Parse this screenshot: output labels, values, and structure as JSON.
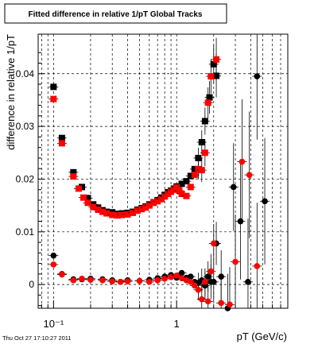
{
  "chart_data": {
    "type": "scatter",
    "title": "Fitted difference in relative 1/pT  Global Tracks",
    "xlabel": "pT (GeV/c)",
    "ylabel": "difference in relative 1/pT",
    "x_scale": "log",
    "xlim": [
      0.075,
      8.0
    ],
    "ylim": [
      -0.0045,
      0.0475
    ],
    "grid": true,
    "footer": "Thu Oct 27 17:10:27 2011",
    "x_ticks": [
      {
        "value": 0.1,
        "label": "10⁻¹"
      },
      {
        "value": 1,
        "label": "1"
      }
    ],
    "y_ticks": [
      {
        "value": 0,
        "label": "0"
      },
      {
        "value": 0.01,
        "label": "0.01"
      },
      {
        "value": 0.02,
        "label": "0.02"
      },
      {
        "value": 0.03,
        "label": "0.03"
      },
      {
        "value": 0.04,
        "label": "0.04"
      }
    ],
    "series": [
      {
        "marker": "square",
        "color": "#000000",
        "x": [
          0.1,
          0.117,
          0.145,
          0.17,
          0.19,
          0.21,
          0.23,
          0.25,
          0.27,
          0.3,
          0.33,
          0.36,
          0.4,
          0.44,
          0.48,
          0.52,
          0.56,
          0.6,
          0.65,
          0.7,
          0.75,
          0.8,
          0.85,
          0.9,
          0.95,
          1.0,
          1.1,
          1.2,
          1.3,
          1.4,
          1.5,
          1.6,
          1.7,
          1.85,
          2.0,
          2.1
        ],
        "y": [
          0.0375,
          0.0278,
          0.0213,
          0.0185,
          0.0164,
          0.0152,
          0.0146,
          0.0141,
          0.0138,
          0.0137,
          0.0134,
          0.0135,
          0.0136,
          0.0138,
          0.0142,
          0.0145,
          0.0148,
          0.0152,
          0.0156,
          0.016,
          0.0165,
          0.017,
          0.0175,
          0.0178,
          0.0182,
          0.0186,
          0.0191,
          0.0196,
          0.0206,
          0.0219,
          0.024,
          0.027,
          0.031,
          0.0355,
          0.0418,
          0.0396
        ]
      },
      {
        "marker": "square",
        "color": "#ff0000",
        "x": [
          0.1,
          0.117,
          0.145,
          0.16,
          0.175,
          0.19,
          0.21,
          0.23,
          0.25,
          0.27,
          0.3,
          0.33,
          0.36,
          0.4,
          0.44,
          0.48,
          0.52,
          0.56,
          0.6,
          0.65,
          0.7,
          0.75,
          0.8,
          0.85,
          0.9,
          0.95,
          1.0,
          1.05,
          1.1,
          1.2,
          1.3,
          1.4,
          1.5,
          1.6,
          1.7,
          1.8,
          1.9,
          2.1
        ],
        "y": [
          0.0352,
          0.0268,
          0.0205,
          0.0182,
          0.0165,
          0.0155,
          0.0147,
          0.0142,
          0.0138,
          0.0135,
          0.0132,
          0.0131,
          0.0132,
          0.0133,
          0.0136,
          0.014,
          0.0143,
          0.0146,
          0.015,
          0.0155,
          0.0158,
          0.0162,
          0.0167,
          0.0172,
          0.0176,
          0.018,
          0.0184,
          0.0178,
          0.0172,
          0.0168,
          0.0185,
          0.0208,
          0.0219,
          0.0217,
          0.025,
          0.0345,
          0.0395,
          0.0427
        ]
      },
      {
        "marker": "circle",
        "color": "#000000",
        "x": [
          0.1,
          0.117,
          0.145,
          0.17,
          0.2,
          0.25,
          0.3,
          0.35,
          0.4,
          0.5,
          0.6,
          0.7,
          0.8,
          0.9,
          1.0,
          1.1,
          1.2,
          1.3,
          1.4,
          1.5,
          1.6,
          1.7,
          1.8,
          1.9,
          2.0,
          2.1,
          2.3,
          2.6,
          2.9,
          3.3,
          3.8,
          4.5,
          5.2
        ],
        "y": [
          0.0055,
          0.002,
          0.001,
          0.001,
          0.0011,
          0.001,
          0.0008,
          0.0005,
          0.0008,
          0.0007,
          0.0009,
          0.0012,
          0.0015,
          0.0018,
          0.0013,
          0.0022,
          0.0013,
          0.0015,
          0.0005,
          0.0003,
          0.0008,
          -0.0002,
          0.0015,
          0.0005,
          0.0005,
          0.0078,
          0.0015,
          -0.0045,
          0.0185,
          0.012,
          0.0005,
          0.0395,
          0.0158
        ]
      },
      {
        "marker": "circle",
        "color": "#ff0000",
        "x": [
          0.1,
          0.117,
          0.145,
          0.17,
          0.2,
          0.25,
          0.3,
          0.35,
          0.4,
          0.5,
          0.6,
          0.7,
          0.8,
          0.9,
          1.0,
          1.1,
          1.2,
          1.3,
          1.4,
          1.5,
          1.6,
          1.7,
          1.8,
          1.9,
          2.0,
          2.3,
          2.7,
          3.0,
          3.4,
          3.9,
          4.5
        ],
        "y": [
          0.0038,
          0.0019,
          0.0008,
          0.0011,
          0.0009,
          0.0008,
          0.0006,
          0.0005,
          0.0006,
          0.0007,
          0.0005,
          0.0008,
          0.0011,
          0.0014,
          0.0017,
          0.0012,
          0.0008,
          0.0005,
          -0.0002,
          -0.001,
          -0.0028,
          0.0005,
          -0.0032,
          0.0025,
          0.0078,
          -0.0035,
          -0.0038,
          0.0043,
          0.0233,
          0.0208,
          0.0035
        ]
      }
    ]
  }
}
